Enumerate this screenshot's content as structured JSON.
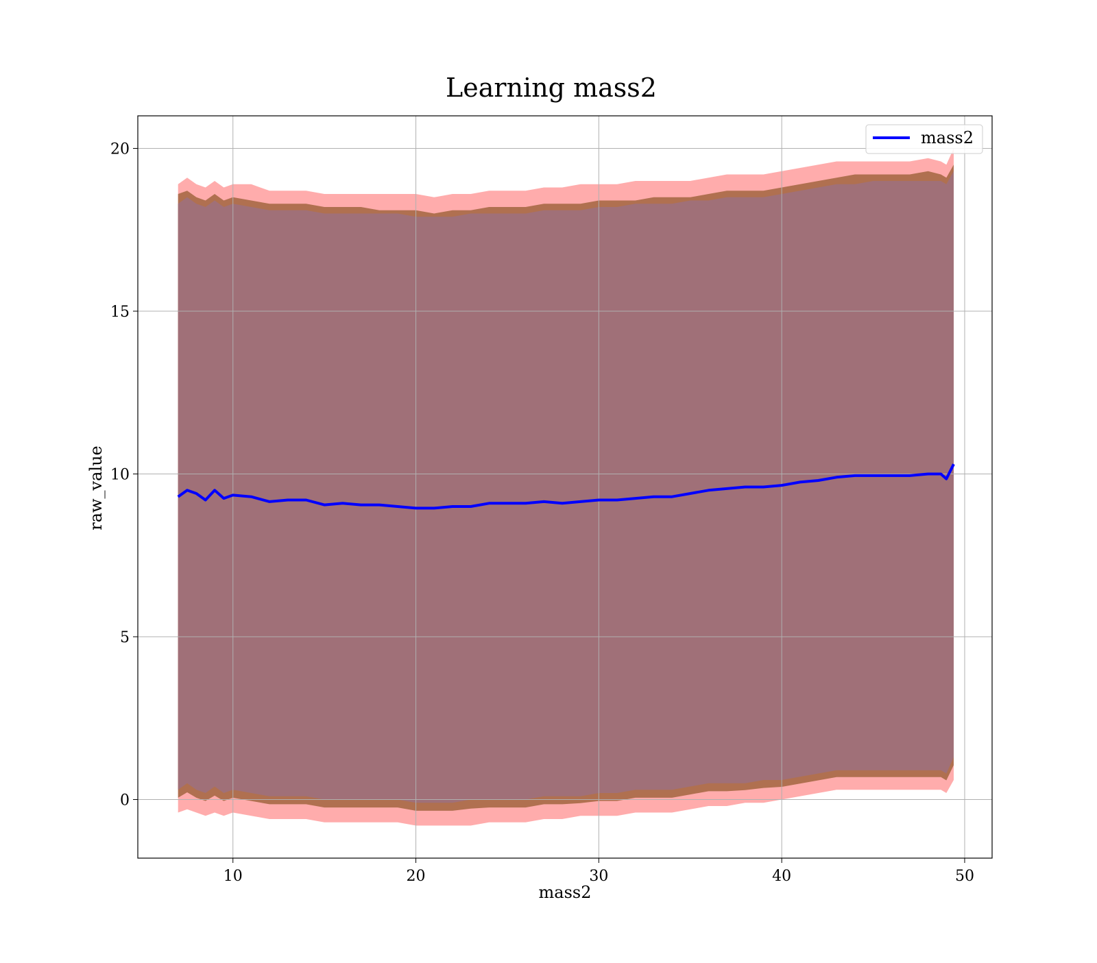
{
  "chart_data": {
    "type": "area",
    "title": "Learning mass2",
    "xlabel": "mass2",
    "ylabel": "raw_value",
    "xlim": [
      4.8,
      51.5
    ],
    "ylim": [
      -1.8,
      21.0
    ],
    "xticks": [
      10,
      20,
      30,
      40,
      50
    ],
    "yticks": [
      0,
      5,
      10,
      15,
      20
    ],
    "grid": true,
    "legend": {
      "placement": "top-right",
      "entries": [
        "mass2"
      ]
    },
    "colors": {
      "mean_line": "#0000ff",
      "outer_band": "#ff8080",
      "middle_band": "#b07050",
      "inner_band": "#a07078"
    },
    "series": [
      {
        "name": "mass2",
        "x": [
          7.0,
          7.5,
          8.0,
          8.5,
          9.0,
          9.5,
          10.0,
          11.0,
          12.0,
          13.0,
          14.0,
          15.0,
          16.0,
          17.0,
          18.0,
          19.0,
          20.0,
          21.0,
          22.0,
          23.0,
          24.0,
          25.0,
          26.0,
          27.0,
          28.0,
          29.0,
          30.0,
          31.0,
          32.0,
          33.0,
          34.0,
          35.0,
          36.0,
          37.0,
          38.0,
          39.0,
          40.0,
          41.0,
          42.0,
          43.0,
          44.0,
          45.0,
          46.0,
          47.0,
          48.0,
          48.7,
          49.0,
          49.4
        ],
        "mean": [
          9.3,
          9.5,
          9.4,
          9.2,
          9.5,
          9.25,
          9.35,
          9.3,
          9.15,
          9.2,
          9.2,
          9.05,
          9.1,
          9.05,
          9.05,
          9.0,
          8.95,
          8.95,
          9.0,
          9.0,
          9.1,
          9.1,
          9.1,
          9.15,
          9.1,
          9.15,
          9.2,
          9.2,
          9.25,
          9.3,
          9.3,
          9.4,
          9.5,
          9.55,
          9.6,
          9.6,
          9.65,
          9.75,
          9.8,
          9.9,
          9.95,
          9.95,
          9.95,
          9.95,
          10.0,
          10.0,
          9.85,
          10.3
        ]
      }
    ],
    "bands": [
      {
        "name": "outer",
        "upper": [
          18.9,
          19.1,
          18.9,
          18.8,
          19.0,
          18.8,
          18.9,
          18.9,
          18.7,
          18.7,
          18.7,
          18.6,
          18.6,
          18.6,
          18.6,
          18.6,
          18.6,
          18.5,
          18.6,
          18.6,
          18.7,
          18.7,
          18.7,
          18.8,
          18.8,
          18.9,
          18.9,
          18.9,
          19.0,
          19.0,
          19.0,
          19.0,
          19.1,
          19.2,
          19.2,
          19.2,
          19.3,
          19.4,
          19.5,
          19.6,
          19.6,
          19.6,
          19.6,
          19.6,
          19.7,
          19.6,
          19.5,
          20.0
        ],
        "lower": [
          -0.4,
          -0.3,
          -0.4,
          -0.5,
          -0.4,
          -0.5,
          -0.4,
          -0.5,
          -0.6,
          -0.6,
          -0.6,
          -0.7,
          -0.7,
          -0.7,
          -0.7,
          -0.7,
          -0.8,
          -0.8,
          -0.8,
          -0.8,
          -0.7,
          -0.7,
          -0.7,
          -0.6,
          -0.6,
          -0.5,
          -0.5,
          -0.5,
          -0.4,
          -0.4,
          -0.4,
          -0.3,
          -0.2,
          -0.2,
          -0.1,
          -0.1,
          0.0,
          0.1,
          0.2,
          0.3,
          0.3,
          0.3,
          0.3,
          0.3,
          0.3,
          0.3,
          0.2,
          0.6
        ]
      },
      {
        "name": "middle",
        "upper": [
          18.6,
          18.7,
          18.5,
          18.4,
          18.6,
          18.4,
          18.5,
          18.4,
          18.3,
          18.3,
          18.3,
          18.2,
          18.2,
          18.2,
          18.1,
          18.1,
          18.1,
          18.0,
          18.1,
          18.1,
          18.2,
          18.2,
          18.2,
          18.3,
          18.3,
          18.3,
          18.4,
          18.4,
          18.4,
          18.5,
          18.5,
          18.5,
          18.6,
          18.7,
          18.7,
          18.7,
          18.8,
          18.9,
          19.0,
          19.1,
          19.2,
          19.2,
          19.2,
          19.2,
          19.3,
          19.2,
          19.1,
          19.5
        ]
      },
      {
        "name": "inner",
        "upper": [
          18.3,
          18.5,
          18.3,
          18.2,
          18.4,
          18.2,
          18.3,
          18.2,
          18.1,
          18.1,
          18.1,
          18.0,
          18.0,
          18.0,
          18.0,
          18.0,
          17.9,
          17.9,
          17.9,
          18.0,
          18.0,
          18.0,
          18.0,
          18.1,
          18.1,
          18.1,
          18.2,
          18.2,
          18.3,
          18.3,
          18.3,
          18.4,
          18.4,
          18.5,
          18.5,
          18.5,
          18.6,
          18.7,
          18.8,
          18.9,
          18.9,
          19.0,
          19.0,
          19.0,
          19.0,
          19.0,
          18.9,
          19.3
        ],
        "lower": [
          0.3,
          0.5,
          0.3,
          0.2,
          0.4,
          0.2,
          0.3,
          0.2,
          0.1,
          0.1,
          0.1,
          0.0,
          0.0,
          0.0,
          0.0,
          0.0,
          -0.1,
          -0.1,
          -0.1,
          0.0,
          0.0,
          0.0,
          0.0,
          0.1,
          0.1,
          0.1,
          0.2,
          0.2,
          0.3,
          0.3,
          0.3,
          0.4,
          0.5,
          0.5,
          0.5,
          0.6,
          0.6,
          0.7,
          0.8,
          0.9,
          0.9,
          0.9,
          0.9,
          0.9,
          0.9,
          0.9,
          0.8,
          1.3
        ]
      }
    ]
  }
}
